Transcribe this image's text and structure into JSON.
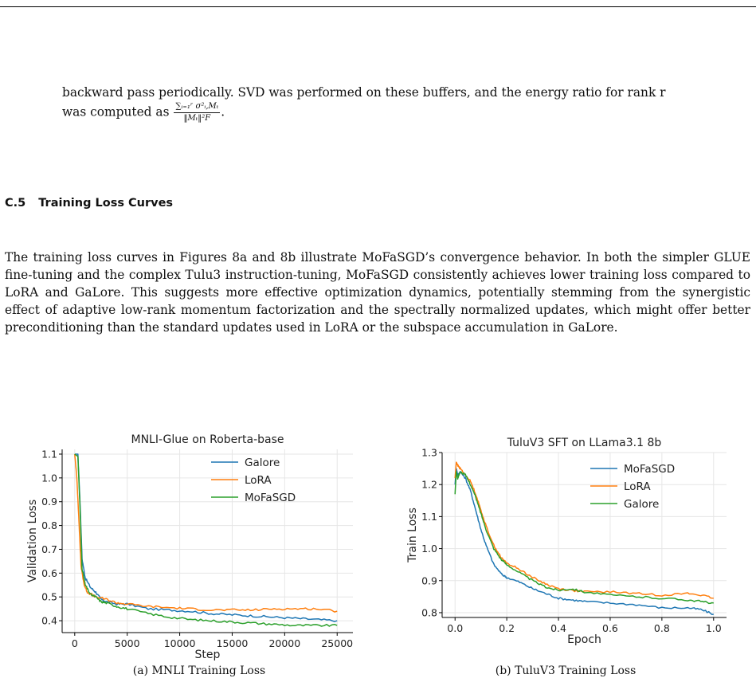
{
  "paragraph1": {
    "line1": "backward pass periodically. SVD was performed on these buffers, and the energy ratio for rank r",
    "line2_prefix": "was computed as",
    "line2_suffix": ".",
    "fraction_numerator": "∑ᵢ₌₁ʳ σ²ᵢ,Mₜ",
    "fraction_denominator": "‖Mₜ‖²F"
  },
  "section": {
    "number": "C.5",
    "title": "Training Loss Curves"
  },
  "paragraph2": "The training loss curves in Figures 8a and 8b illustrate MoFaSGD’s convergence behavior. In both the simpler GLUE fine-tuning and the complex Tulu3 instruction-tuning, MoFaSGD consistently achieves lower training loss compared to LoRA and GaLore. This suggests more effective optimization dynamics, potentially stemming from the synergistic effect of adaptive low-rank momentum factorization and the spectrally normalized updates, which might offer better preconditioning than the standard updates used in LoRA or the subspace accumulation in GaLore.",
  "captions": {
    "a": "(a) MNLI Training Loss",
    "b": "(b) TuluV3 Training Loss"
  },
  "colors": {
    "blue": "#1f77b4",
    "orange": "#ff7f0e",
    "green": "#2ca02c"
  },
  "chart_data": [
    {
      "type": "line",
      "title": "MNLI-Glue on Roberta-base",
      "xlabel": "Step",
      "ylabel": "Validation Loss",
      "xlim": [
        -1200,
        26500
      ],
      "ylim": [
        0.35,
        1.12
      ],
      "xticks": [
        0,
        5000,
        10000,
        15000,
        20000,
        25000
      ],
      "yticks": [
        0.4,
        0.5,
        0.6,
        0.7,
        0.8,
        0.9,
        1.0,
        1.1
      ],
      "xtick_labels": [
        "0",
        "5000",
        "10000",
        "15000",
        "20000",
        "25000"
      ],
      "ytick_labels": [
        "0.4",
        "0.5",
        "0.6",
        "0.7",
        "0.8",
        "0.9",
        "1.0",
        "1.1"
      ],
      "grid": true,
      "legend_position": "top-right",
      "series": [
        {
          "name": "Galore",
          "color": "#1f77b4",
          "x": [
            0,
            300,
            500,
            700,
            1000,
            1500,
            2000,
            2500,
            3000,
            4000,
            5000,
            7000,
            9000,
            11000,
            13000,
            15000,
            17000,
            19000,
            21000,
            23000,
            25000
          ],
          "y": [
            1.1,
            1.1,
            0.9,
            0.66,
            0.58,
            0.54,
            0.52,
            0.49,
            0.48,
            0.47,
            0.47,
            0.45,
            0.445,
            0.44,
            0.43,
            0.425,
            0.42,
            0.415,
            0.41,
            0.405,
            0.4
          ]
        },
        {
          "name": "LoRA",
          "color": "#ff7f0e",
          "x": [
            0,
            200,
            400,
            600,
            900,
            1200,
            1600,
            2000,
            3000,
            4000,
            5000,
            7000,
            9000,
            11000,
            13000,
            15000,
            17000,
            19000,
            21000,
            23000,
            25000
          ],
          "y": [
            1.1,
            1.0,
            0.82,
            0.63,
            0.55,
            0.52,
            0.51,
            0.5,
            0.49,
            0.475,
            0.47,
            0.46,
            0.455,
            0.45,
            0.445,
            0.445,
            0.445,
            0.45,
            0.45,
            0.45,
            0.44
          ]
        },
        {
          "name": "MoFaSGD",
          "color": "#2ca02c",
          "x": [
            0,
            300,
            500,
            700,
            1000,
            1500,
            2000,
            2500,
            3000,
            4000,
            5000,
            7000,
            9000,
            11000,
            13000,
            15000,
            17000,
            19000,
            21000,
            23000,
            25000
          ],
          "y": [
            1.1,
            1.09,
            0.88,
            0.62,
            0.55,
            0.51,
            0.5,
            0.48,
            0.475,
            0.46,
            0.45,
            0.43,
            0.415,
            0.405,
            0.4,
            0.395,
            0.39,
            0.385,
            0.38,
            0.38,
            0.38
          ]
        }
      ]
    },
    {
      "type": "line",
      "title": "TuluV3 SFT on LLama3.1 8b",
      "xlabel": "Epoch",
      "ylabel": "Train Loss",
      "xlim": [
        -0.05,
        1.05
      ],
      "ylim": [
        0.785,
        1.3
      ],
      "xticks": [
        0.0,
        0.2,
        0.4,
        0.6,
        0.8,
        1.0
      ],
      "yticks": [
        0.8,
        0.9,
        1.0,
        1.1,
        1.2,
        1.3
      ],
      "xtick_labels": [
        "0.0",
        "0.2",
        "0.4",
        "0.6",
        "0.8",
        "1.0"
      ],
      "ytick_labels": [
        "0.8",
        "0.9",
        "1.0",
        "1.1",
        "1.2",
        "1.3"
      ],
      "grid": true,
      "legend_position": "top-right",
      "series": [
        {
          "name": "MoFaSGD",
          "color": "#1f77b4",
          "x": [
            0.0,
            0.005,
            0.01,
            0.02,
            0.04,
            0.06,
            0.08,
            0.1,
            0.12,
            0.15,
            0.18,
            0.2,
            0.25,
            0.3,
            0.35,
            0.4,
            0.45,
            0.5,
            0.6,
            0.7,
            0.8,
            0.9,
            0.95,
            1.0
          ],
          "y": [
            1.2,
            1.25,
            1.23,
            1.24,
            1.22,
            1.18,
            1.12,
            1.06,
            1.01,
            0.95,
            0.92,
            0.91,
            0.895,
            0.875,
            0.86,
            0.845,
            0.84,
            0.835,
            0.83,
            0.825,
            0.815,
            0.815,
            0.81,
            0.795
          ]
        },
        {
          "name": "LoRA",
          "color": "#ff7f0e",
          "x": [
            0.0,
            0.005,
            0.01,
            0.02,
            0.04,
            0.06,
            0.08,
            0.1,
            0.12,
            0.15,
            0.18,
            0.2,
            0.25,
            0.3,
            0.35,
            0.4,
            0.45,
            0.5,
            0.6,
            0.7,
            0.8,
            0.9,
            0.95,
            1.0
          ],
          "y": [
            1.22,
            1.27,
            1.26,
            1.25,
            1.23,
            1.21,
            1.17,
            1.12,
            1.07,
            1.01,
            0.97,
            0.955,
            0.935,
            0.91,
            0.89,
            0.875,
            0.87,
            0.865,
            0.865,
            0.86,
            0.855,
            0.86,
            0.855,
            0.845
          ]
        },
        {
          "name": "Galore",
          "color": "#2ca02c",
          "x": [
            0.0,
            0.005,
            0.01,
            0.02,
            0.04,
            0.06,
            0.08,
            0.1,
            0.12,
            0.15,
            0.18,
            0.2,
            0.25,
            0.3,
            0.35,
            0.4,
            0.45,
            0.5,
            0.6,
            0.7,
            0.8,
            0.9,
            0.95,
            1.0
          ],
          "y": [
            1.17,
            1.24,
            1.22,
            1.24,
            1.23,
            1.2,
            1.16,
            1.11,
            1.06,
            1.0,
            0.965,
            0.95,
            0.925,
            0.9,
            0.88,
            0.87,
            0.875,
            0.865,
            0.855,
            0.85,
            0.845,
            0.84,
            0.835,
            0.83
          ]
        }
      ]
    }
  ]
}
